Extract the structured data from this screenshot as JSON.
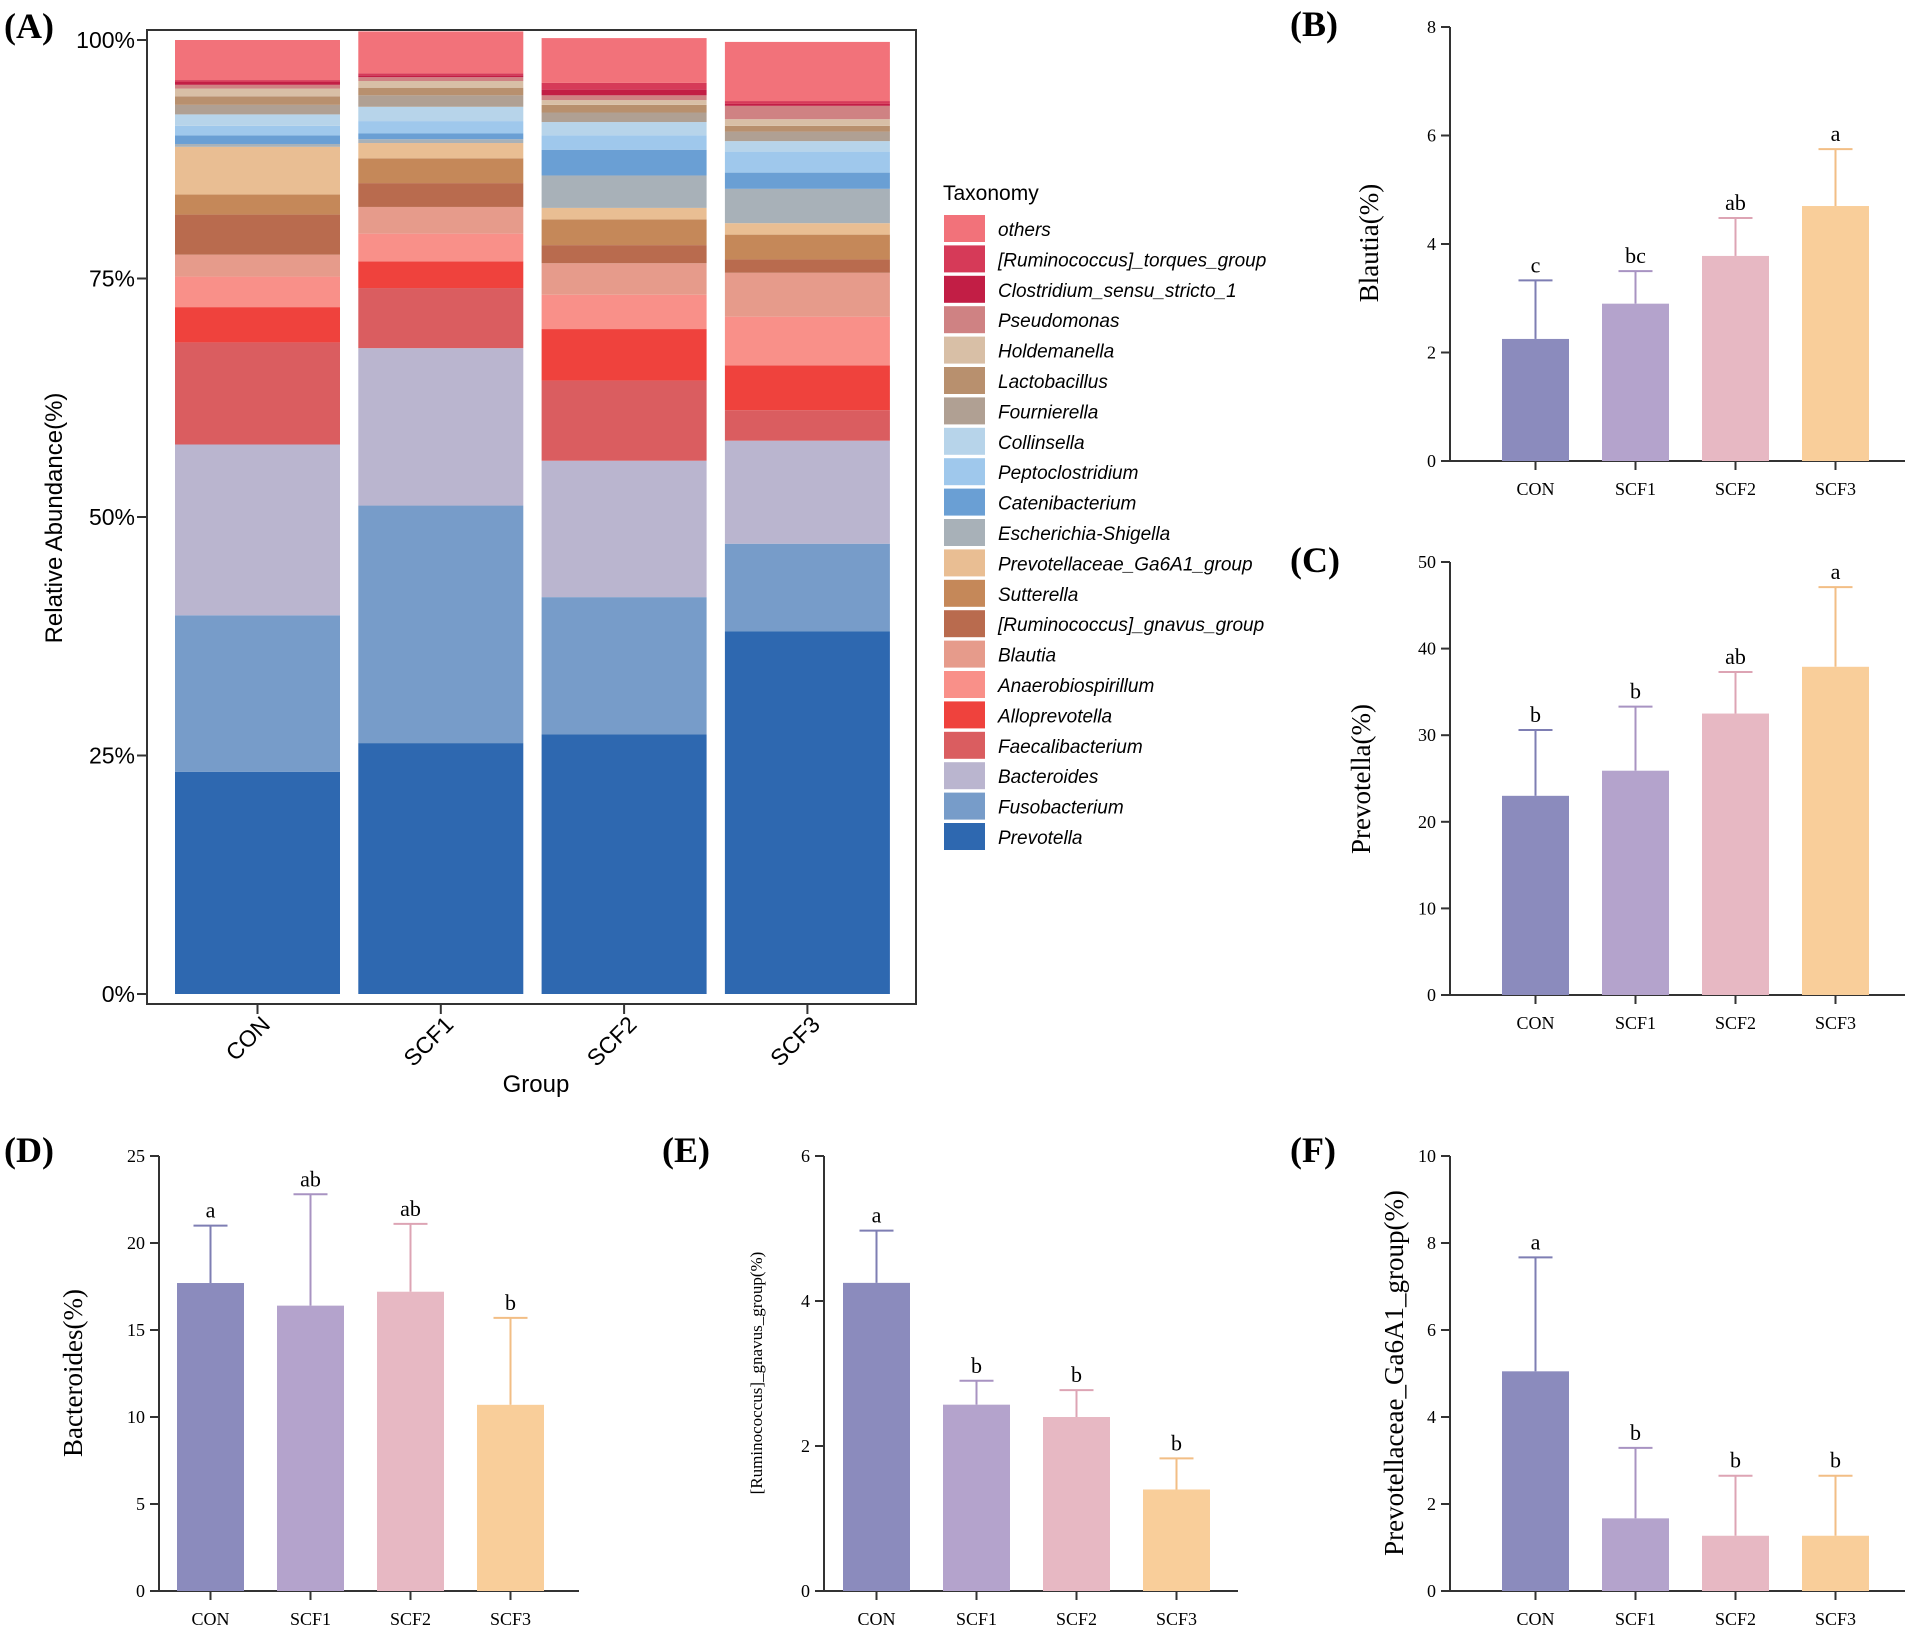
{
  "chart_data": [
    {
      "type": "stacked_bar",
      "panel_label": "(A)",
      "xlabel": "Group",
      "ylabel": "Relative Abundance(%)",
      "ylim": [
        0,
        100
      ],
      "yticks": [
        "0%",
        "25%",
        "50%",
        "75%",
        "100%"
      ],
      "categories": [
        "CON",
        "SCF1",
        "SCF2",
        "SCF3"
      ],
      "legend_title": "Taxonomy",
      "series": [
        {
          "name": "Prevotella",
          "color": "#2E68B0",
          "values": [
            23.3,
            26.3,
            27.2,
            38.0
          ]
        },
        {
          "name": "Fusobacterium",
          "color": "#779CC9",
          "values": [
            16.4,
            24.9,
            14.4,
            9.2
          ]
        },
        {
          "name": "Bacteroides",
          "color": "#BAB5CF",
          "values": [
            17.9,
            16.5,
            14.3,
            10.8
          ]
        },
        {
          "name": "Faecalibacterium",
          "color": "#DA5D60",
          "values": [
            10.7,
            6.3,
            8.4,
            3.2
          ]
        },
        {
          "name": "Alloprevotella",
          "color": "#EF423D",
          "values": [
            3.7,
            2.8,
            5.4,
            4.7
          ]
        },
        {
          "name": "Anaerobiospirillum",
          "color": "#F99089",
          "values": [
            3.2,
            2.9,
            3.6,
            5.1
          ]
        },
        {
          "name": "Blautia",
          "color": "#E69B8B",
          "values": [
            2.3,
            2.8,
            3.3,
            4.6
          ]
        },
        {
          "name": "[Ruminococcus]_gnavus_group",
          "color": "#B96B4E",
          "values": [
            4.2,
            2.5,
            1.9,
            1.4
          ]
        },
        {
          "name": "Sutterella",
          "color": "#C58859",
          "values": [
            2.1,
            2.6,
            2.7,
            2.6
          ]
        },
        {
          "name": "Prevotellaceae_Ga6A1_group",
          "color": "#E9BE93",
          "values": [
            5.0,
            1.6,
            1.2,
            1.2
          ]
        },
        {
          "name": "Escherichia-Shigella",
          "color": "#A8B1B8",
          "values": [
            0.3,
            0.4,
            3.4,
            3.6
          ]
        },
        {
          "name": "Catenibacterium",
          "color": "#6A9FD4",
          "values": [
            0.9,
            0.6,
            2.7,
            1.7
          ]
        },
        {
          "name": "Peptoclostridium",
          "color": "#9FC8EC",
          "values": [
            1.0,
            1.3,
            1.5,
            2.2
          ]
        },
        {
          "name": "Collinsella",
          "color": "#B7D4EA",
          "values": [
            1.2,
            1.5,
            1.4,
            1.1
          ]
        },
        {
          "name": "Fournierella",
          "color": "#B0A093",
          "values": [
            1.0,
            1.2,
            1.0,
            1.0
          ]
        },
        {
          "name": "Lactobacillus",
          "color": "#B8906E",
          "values": [
            0.9,
            0.8,
            0.8,
            0.6
          ]
        },
        {
          "name": "Holdemanella",
          "color": "#D8BFA6",
          "values": [
            0.8,
            0.7,
            0.5,
            0.7
          ]
        },
        {
          "name": "Pseudomonas",
          "color": "#CF8283",
          "values": [
            0.4,
            0.4,
            0.5,
            1.4
          ]
        },
        {
          "name": "Clostridium_sensu_stricto_1",
          "color": "#C21E45",
          "values": [
            0.3,
            0.2,
            0.6,
            0.2
          ]
        },
        {
          "name": "[Ruminococcus]_torques_group",
          "color": "#D63A58",
          "values": [
            0.2,
            0.2,
            0.7,
            0.3
          ]
        },
        {
          "name": "others",
          "color": "#F2727A",
          "values": [
            4.2,
            4.4,
            4.7,
            6.2
          ]
        }
      ]
    },
    {
      "type": "bar",
      "panel_label": "(B)",
      "ylabel": "Blautia(%)",
      "categories": [
        "CON",
        "SCF1",
        "SCF2",
        "SCF3"
      ],
      "values": [
        2.25,
        2.9,
        3.78,
        4.7
      ],
      "errors": [
        1.08,
        0.6,
        0.7,
        1.05
      ],
      "letters": [
        "c",
        "bc",
        "ab",
        "a"
      ],
      "ylim": [
        0,
        8
      ],
      "yticks": [
        "0",
        "2",
        "4",
        "6",
        "8"
      ]
    },
    {
      "type": "bar",
      "panel_label": "(C)",
      "ylabel": "Prevotella(%)",
      "categories": [
        "CON",
        "SCF1",
        "SCF2",
        "SCF3"
      ],
      "values": [
        23.0,
        25.9,
        32.5,
        37.9
      ],
      "errors": [
        7.6,
        7.4,
        4.8,
        9.2
      ],
      "letters": [
        "b",
        "b",
        "ab",
        "a"
      ],
      "ylim": [
        0,
        50
      ],
      "yticks": [
        "0",
        "10",
        "20",
        "30",
        "40",
        "50"
      ]
    },
    {
      "type": "bar",
      "panel_label": "(D)",
      "ylabel": "Bacteroides(%)",
      "categories": [
        "CON",
        "SCF1",
        "SCF2",
        "SCF3"
      ],
      "values": [
        17.7,
        16.4,
        17.2,
        10.7
      ],
      "errors": [
        3.3,
        6.4,
        3.9,
        5.0
      ],
      "letters": [
        "a",
        "ab",
        "ab",
        "b"
      ],
      "ylim": [
        0,
        25
      ],
      "yticks": [
        "0",
        "5",
        "10",
        "15",
        "20",
        "25"
      ]
    },
    {
      "type": "bar",
      "panel_label": "(E)",
      "ylabel": "[Ruminococcus]_gnavus_group(%)",
      "categories": [
        "CON",
        "SCF1",
        "SCF2",
        "SCF3"
      ],
      "values": [
        4.25,
        2.57,
        2.4,
        1.4
      ],
      "errors": [
        0.72,
        0.33,
        0.37,
        0.43
      ],
      "letters": [
        "a",
        "b",
        "b",
        "b"
      ],
      "ylim": [
        0,
        6
      ],
      "yticks": [
        "0",
        "2",
        "4",
        "6"
      ]
    },
    {
      "type": "bar",
      "panel_label": "(F)",
      "ylabel": "Prevotellaceae_Ga6A1_group(%)",
      "categories": [
        "CON",
        "SCF1",
        "SCF2",
        "SCF3"
      ],
      "values": [
        5.05,
        1.67,
        1.27,
        1.27
      ],
      "errors": [
        2.62,
        1.62,
        1.38,
        1.38
      ],
      "letters": [
        "a",
        "b",
        "b",
        "b"
      ],
      "ylim": [
        0,
        10
      ],
      "yticks": [
        "0",
        "2",
        "4",
        "6",
        "8",
        "10"
      ]
    }
  ],
  "palette": {
    "bars": [
      "#8B8BBD",
      "#B4A3CC",
      "#E7B8C3",
      "#F9CE9A"
    ],
    "errorbars": [
      "#7E7EB3",
      "#A893C2",
      "#DDA4B4",
      "#F2BE85"
    ]
  }
}
